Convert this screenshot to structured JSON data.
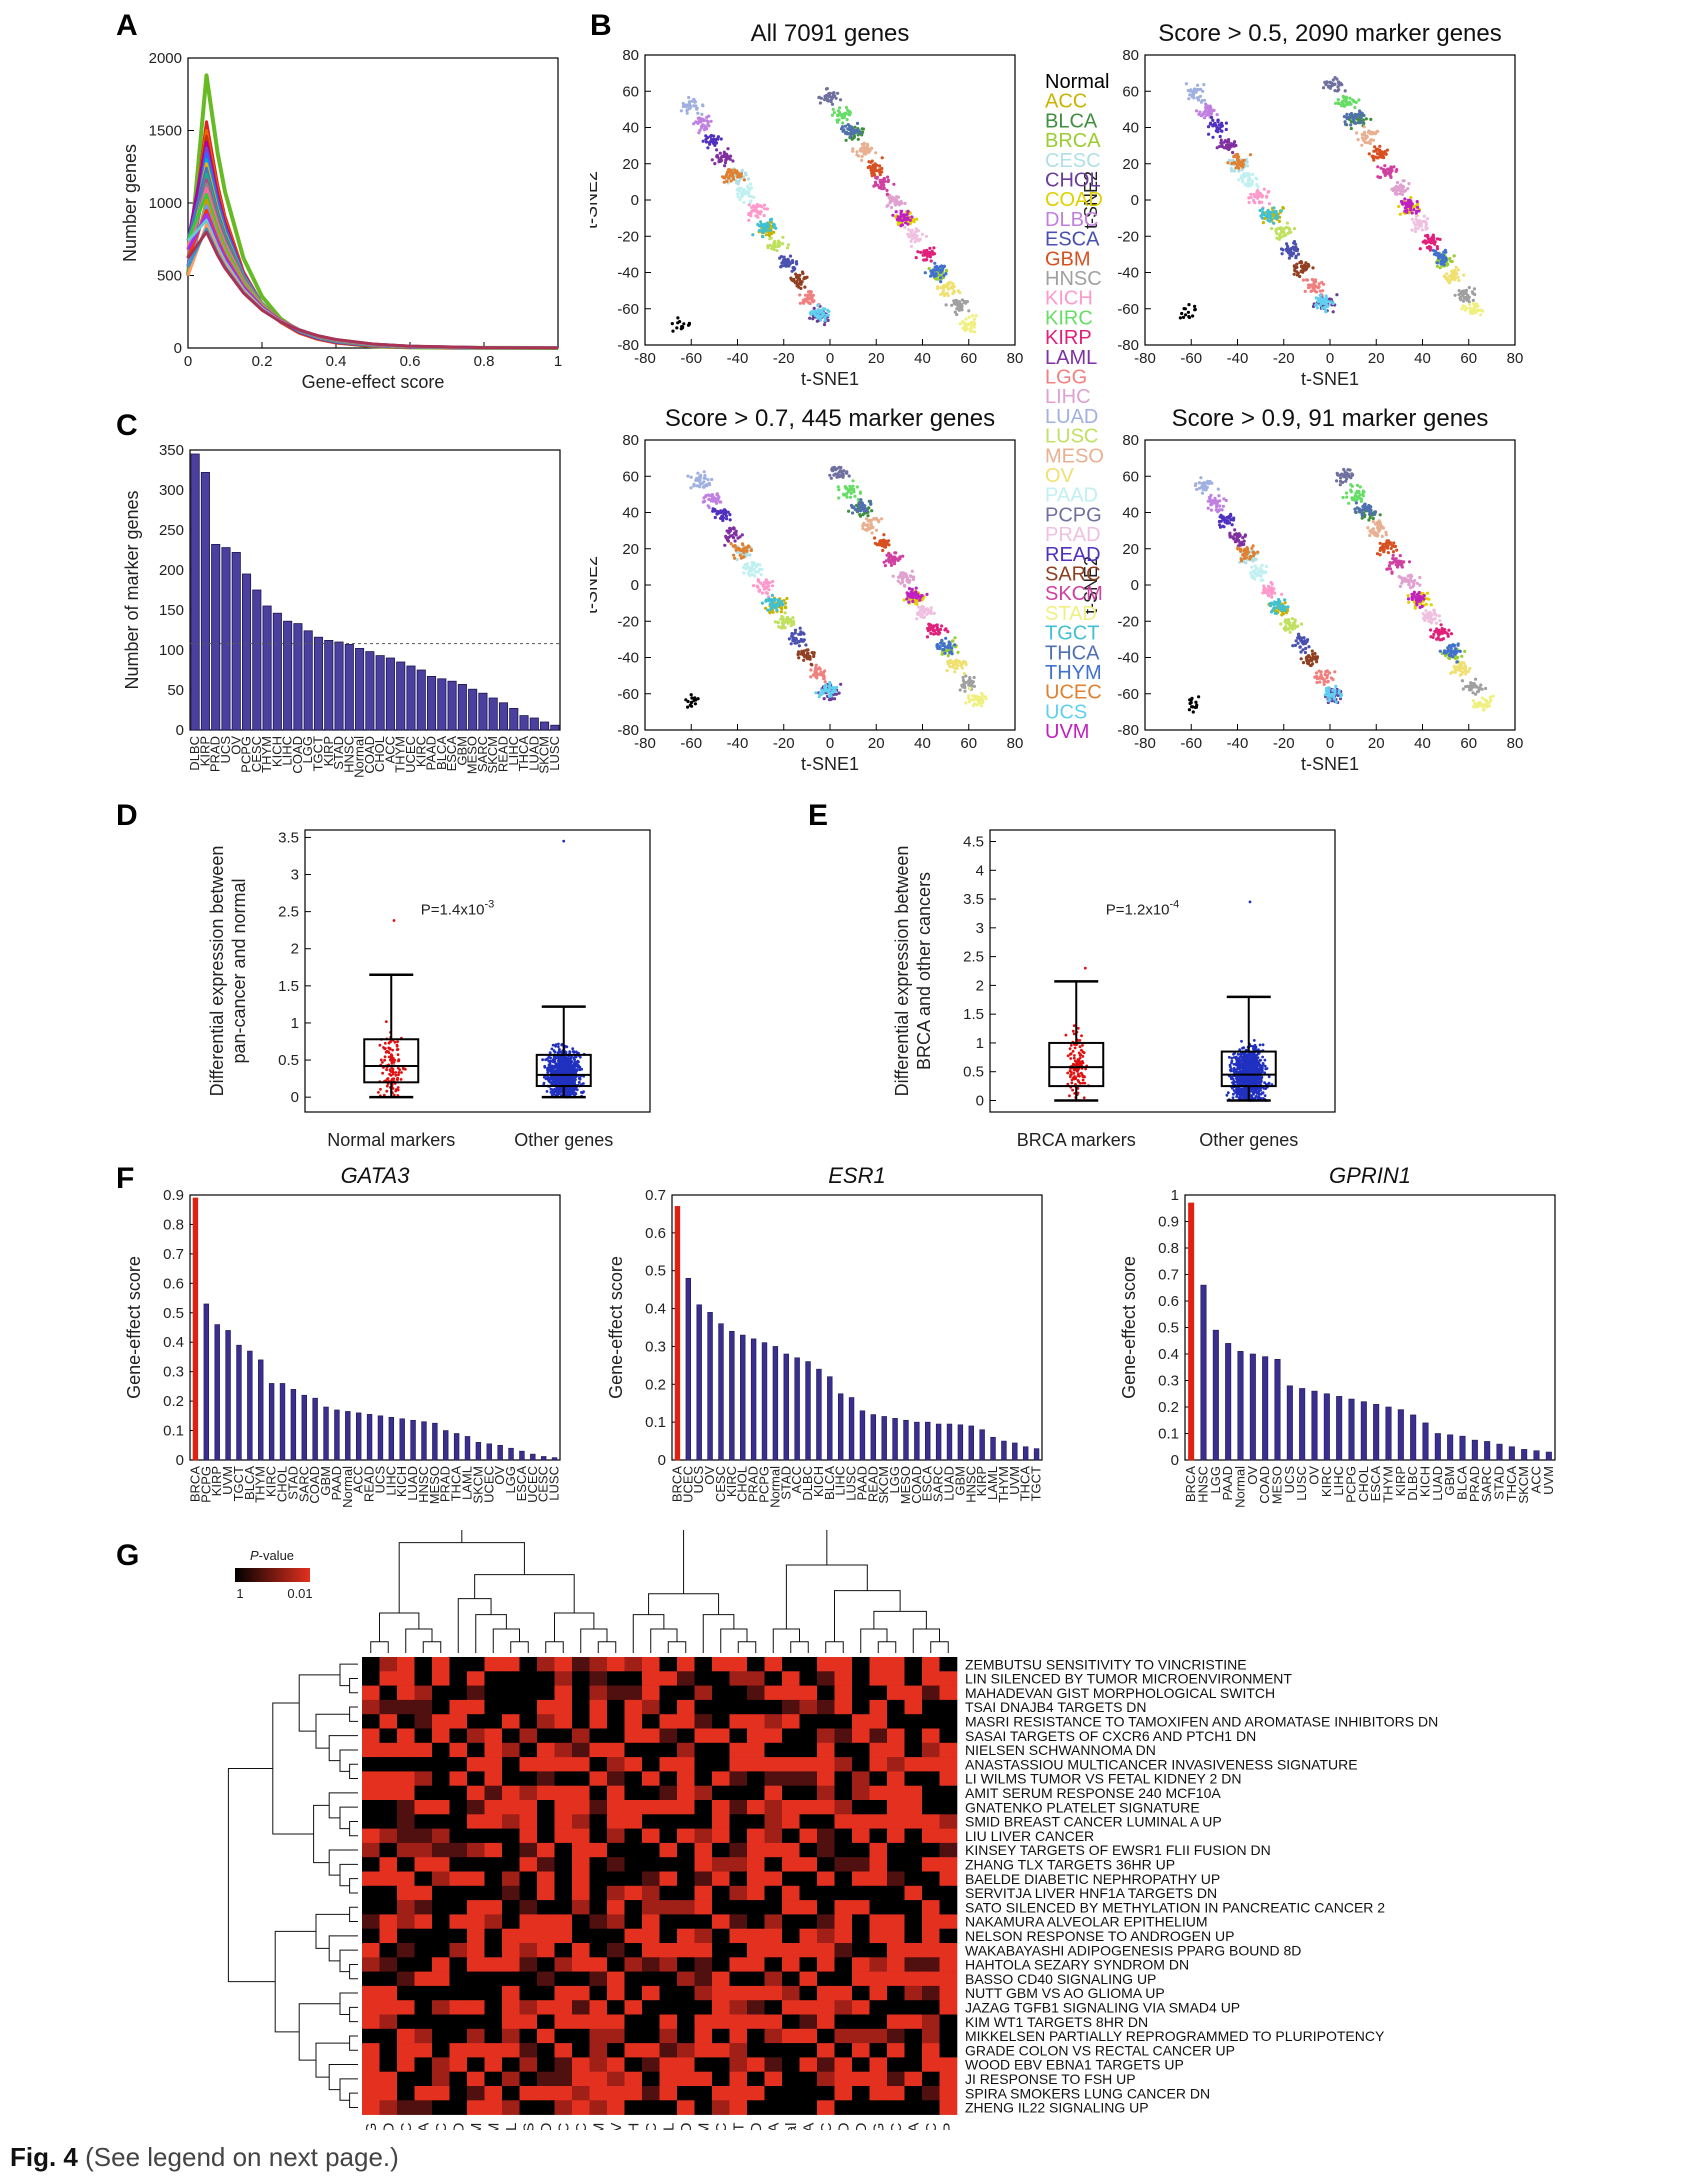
{
  "caption": {
    "fig": "Fig. 4",
    "text": "(See legend on next page.)"
  },
  "panel_labels": {
    "a": "A",
    "b": "B",
    "c": "C",
    "d": "D",
    "e": "E",
    "f": "F",
    "g": "G"
  },
  "cancer_colors": {
    "Normal": "#000000",
    "ACC": "#c8b400",
    "BLCA": "#3f8f3f",
    "BRCA": "#9acd32",
    "CESC": "#b0e0e6",
    "CHOL": "#6a3d9a",
    "COAD": "#e0d000",
    "DLBC": "#c080e0",
    "ESCA": "#4a50b0",
    "GBM": "#d85020",
    "HNSC": "#a0a0a0",
    "KICH": "#ff99cc",
    "KIRC": "#66dd66",
    "KIRP": "#e0207a",
    "LAML": "#8030a0",
    "LGG": "#f08080",
    "LIHC": "#e0a0d0",
    "LUAD": "#a0b0e0",
    "LUSC": "#c0e060",
    "MESO": "#e8b090",
    "OV": "#f0e070",
    "PAAD": "#c0f0f0",
    "PCPG": "#7070a0",
    "PRAD": "#f0c0e0",
    "READ": "#5030c0",
    "SARC": "#904020",
    "SKCM": "#d040a0",
    "STAD": "#f0f080",
    "TGCT": "#40c0d0",
    "THCA": "#5070b0",
    "THYM": "#4070d0",
    "UCEC": "#e08030",
    "UCS": "#60d0f0",
    "UVM": "#c020c0"
  },
  "legend_names": [
    "Normal",
    "ACC",
    "BLCA",
    "BRCA",
    "CESC",
    "CHOL",
    "COAD",
    "DLBC",
    "ESCA",
    "GBM",
    "HNSC",
    "KICH",
    "KIRC",
    "KIRP",
    "LAML",
    "LGG",
    "LIHC",
    "LUAD",
    "LUSC",
    "MESO",
    "OV",
    "PAAD",
    "PCPG",
    "PRAD",
    "READ",
    "SARC",
    "SKCM",
    "STAD",
    "TGCT",
    "THCA",
    "THYM",
    "UCEC",
    "UCS",
    "UVM"
  ],
  "chart_data": [
    {
      "id": "A",
      "type": "line",
      "xlabel": "Gene-effect score",
      "ylabel": "Number genes",
      "xlim": [
        0,
        1
      ],
      "ylim": [
        0,
        2000
      ],
      "xticks": [
        "0",
        "0.2",
        "0.4",
        "0.6",
        "0.8",
        "1"
      ],
      "yticks": [
        "0",
        "500",
        "1000",
        "1500",
        "2000"
      ],
      "x": [
        0,
        0.02,
        0.05,
        0.08,
        0.1,
        0.15,
        0.2,
        0.25,
        0.3,
        0.35,
        0.4,
        0.5,
        0.6,
        0.8,
        1.0
      ],
      "series_peaks": [
        1880,
        1560,
        1500,
        1460,
        1420,
        1380,
        1340,
        1300,
        1270,
        1240,
        1200,
        1160,
        1130,
        1100,
        1060,
        1020,
        980,
        950,
        920,
        880,
        850,
        820,
        800
      ]
    },
    {
      "id": "B",
      "type": "scatter",
      "xlabel": "t-SNE1",
      "ylabel": "t-SNE2",
      "xlim": [
        -80,
        80
      ],
      "ylim": [
        -80,
        80
      ],
      "xticks": [
        "-80",
        "-60",
        "-40",
        "-20",
        "0",
        "20",
        "40",
        "60",
        "80"
      ],
      "yticks": [
        "-80",
        "-60",
        "-40",
        "-20",
        "0",
        "20",
        "40",
        "60",
        "80"
      ],
      "subplots": [
        {
          "title": "All 7091 genes"
        },
        {
          "title": "Score > 0.5, 2090 marker genes"
        },
        {
          "title": "Score > 0.7, 445 marker genes"
        },
        {
          "title": "Score > 0.9, 91 marker genes"
        }
      ]
    },
    {
      "id": "C",
      "type": "bar",
      "ylabel": "Number of marker genes",
      "ylim": [
        0,
        350
      ],
      "yticks": [
        "0",
        "50",
        "100",
        "150",
        "200",
        "250",
        "300",
        "350"
      ],
      "reference_line": 108,
      "categories": [
        "DLBC",
        "KIRP",
        "PRAD",
        "UCS",
        "OV",
        "PCPG",
        "CESC",
        "THYM",
        "KICH",
        "LIHC",
        "COAD",
        "LGG",
        "TGCT",
        "KIRP",
        "STAD",
        "HNSC",
        "Normal",
        "COAD",
        "CHOL",
        "ACC",
        "THYM",
        "UCEC",
        "KIRC",
        "PAAD",
        "BLCA",
        "ESCA",
        "GBM",
        "MESO",
        "SARC",
        "SKCM",
        "READ",
        "LIHC",
        "THCA",
        "LUAD",
        "SKCM",
        "LUSC"
      ],
      "values": [
        345,
        322,
        232,
        228,
        222,
        195,
        175,
        155,
        146,
        136,
        133,
        124,
        116,
        112,
        110,
        107,
        102,
        98,
        93,
        90,
        85,
        80,
        75,
        67,
        64,
        61,
        57,
        51,
        46,
        40,
        34,
        27,
        18,
        15,
        10,
        6
      ]
    },
    {
      "id": "D",
      "type": "box",
      "ylabel": [
        "Differential expression between",
        "pan-cancer and normal"
      ],
      "ylim": [
        -0.2,
        3.6
      ],
      "yticks": [
        "0",
        "0.5",
        "1",
        "1.5",
        "2",
        "2.5",
        "3",
        "3.5"
      ],
      "pvalue": "P=1.4x10",
      "pvalue_exp": "-3",
      "groups": [
        {
          "name": "Normal markers",
          "q1": 0.2,
          "median": 0.42,
          "q3": 0.78,
          "whisker_low": 0.0,
          "whisker_high": 1.65,
          "max": 2.38
        },
        {
          "name": "Other genes",
          "q1": 0.15,
          "median": 0.3,
          "q3": 0.57,
          "whisker_low": 0.0,
          "whisker_high": 1.22,
          "max": 3.45
        }
      ]
    },
    {
      "id": "E",
      "type": "box",
      "ylabel": [
        "Differential expression between",
        "BRCA and other cancers"
      ],
      "ylim": [
        -0.2,
        4.7
      ],
      "yticks": [
        "0",
        "0.5",
        "1",
        "1.5",
        "2",
        "2.5",
        "3",
        "3.5",
        "4",
        "4.5"
      ],
      "pvalue": "P=1.2x10",
      "pvalue_exp": "-4",
      "groups": [
        {
          "name": "BRCA markers",
          "q1": 0.25,
          "median": 0.58,
          "q3": 1.0,
          "whisker_low": 0.0,
          "whisker_high": 2.07,
          "max": 2.3
        },
        {
          "name": "Other genes",
          "q1": 0.25,
          "median": 0.45,
          "q3": 0.85,
          "whisker_low": 0.0,
          "whisker_high": 1.8,
          "max": 3.45
        }
      ]
    },
    {
      "id": "F1",
      "type": "bar",
      "gene": "GATA3",
      "ylabel": "Gene-effect score",
      "ylim": [
        0,
        0.9
      ],
      "yticks": [
        "0",
        "0.1",
        "0.2",
        "0.3",
        "0.4",
        "0.5",
        "0.6",
        "0.7",
        "0.8",
        "0.9"
      ],
      "categories": [
        "BRCA",
        "PCPG",
        "KIRP",
        "UVM",
        "TGCT",
        "BLCA",
        "THYM",
        "KIRC",
        "CHOL",
        "STAD",
        "SARC",
        "COAD",
        "GBM",
        "PAAD",
        "Normal",
        "ACC",
        "READ",
        "UCS",
        "LIHC",
        "KICH",
        "LUAD",
        "HNSC",
        "MESO",
        "PRAD",
        "THCA",
        "LAML",
        "SKCM",
        "UCEC",
        "OV",
        "LGG",
        "ESCA",
        "UCEC",
        "CESC",
        "LUSC"
      ],
      "values": [
        0.89,
        0.53,
        0.46,
        0.44,
        0.39,
        0.37,
        0.34,
        0.26,
        0.26,
        0.24,
        0.22,
        0.21,
        0.18,
        0.17,
        0.165,
        0.16,
        0.155,
        0.15,
        0.145,
        0.14,
        0.135,
        0.13,
        0.125,
        0.1,
        0.09,
        0.08,
        0.06,
        0.055,
        0.05,
        0.04,
        0.03,
        0.02,
        0.012,
        0.008
      ]
    },
    {
      "id": "F2",
      "type": "bar",
      "gene": "ESR1",
      "ylabel": "Gene-effect score",
      "ylim": [
        0,
        0.7
      ],
      "yticks": [
        "0",
        "0.1",
        "0.2",
        "0.3",
        "0.4",
        "0.5",
        "0.6",
        "0.7"
      ],
      "categories": [
        "BRCA",
        "UCEC",
        "UCS",
        "OV",
        "CESC",
        "KIRC",
        "CHOL",
        "PRAD",
        "PCPG",
        "Normal",
        "STAD",
        "ACC",
        "DLBC",
        "KICH",
        "BLCA",
        "LIHC",
        "LUSC",
        "PAAD",
        "READ",
        "SKCM",
        "LGG",
        "MESO",
        "COAD",
        "ESCA",
        "SARC",
        "LUAD",
        "GBM",
        "HNSC",
        "KIRP",
        "LAML",
        "THYM",
        "UVM",
        "THCA",
        "TGCT"
      ],
      "values": [
        0.67,
        0.48,
        0.41,
        0.39,
        0.36,
        0.34,
        0.33,
        0.32,
        0.31,
        0.3,
        0.28,
        0.27,
        0.26,
        0.24,
        0.22,
        0.175,
        0.165,
        0.13,
        0.12,
        0.115,
        0.11,
        0.105,
        0.1,
        0.1,
        0.095,
        0.095,
        0.093,
        0.09,
        0.08,
        0.06,
        0.05,
        0.045,
        0.035,
        0.03
      ]
    },
    {
      "id": "F3",
      "type": "bar",
      "gene": "GPRIN1",
      "ylabel": "Gene-effect score",
      "ylim": [
        0,
        1
      ],
      "yticks": [
        "0",
        "0.1",
        "0.2",
        "0.3",
        "0.4",
        "0.5",
        "0.6",
        "0.7",
        "0.8",
        "0.9",
        "1"
      ],
      "categories": [
        "BRCA",
        "HNSC",
        "LGG",
        "PAAD",
        "Normal",
        "OV",
        "COAD",
        "MESO",
        "UCS",
        "LUSC",
        "OV",
        "KIRC",
        "LIHC",
        "PCPG",
        "CHOL",
        "ESCA",
        "THYM",
        "KIRP",
        "DLBC",
        "KICH",
        "LUAD",
        "GBM",
        "BLCA",
        "PRAD",
        "SARC",
        "STAD",
        "THCA",
        "SKCM",
        "ACC",
        "UVM"
      ],
      "values": [
        0.97,
        0.66,
        0.49,
        0.44,
        0.41,
        0.4,
        0.39,
        0.38,
        0.28,
        0.27,
        0.26,
        0.25,
        0.24,
        0.23,
        0.22,
        0.21,
        0.2,
        0.19,
        0.17,
        0.14,
        0.1,
        0.095,
        0.09,
        0.075,
        0.07,
        0.06,
        0.05,
        0.04,
        0.035,
        0.03
      ]
    },
    {
      "id": "G",
      "type": "heatmap",
      "legend": {
        "title_italic": "P",
        "title_rest": "-value",
        "low": "1",
        "high": "0.01"
      },
      "columns": [
        "PCPG",
        "COAD",
        "ACC",
        "BRCA",
        "SARC",
        "READ",
        "SKCM",
        "THYM",
        "LAML",
        "UCS",
        "PRAD",
        "CESC",
        "LIHC",
        "GBM",
        "OV",
        "KICH",
        "HNSC",
        "CHOL",
        "MESO",
        "UVM",
        "DLBC",
        "TGCT",
        "PAAD",
        "ESCA",
        "Normal",
        "THCA",
        "LUSC",
        "LUAD",
        "STAD",
        "LGG",
        "UCEC",
        "BLCA",
        "KIRC",
        "KIRP"
      ],
      "rows": [
        "ZEMBUTSU SENSITIVITY TO VINCRISTINE",
        "LIN SILENCED BY TUMOR MICROENVIRONMENT",
        "MAHADEVAN GIST MORPHOLOGICAL SWITCH",
        "TSAI DNAJB4 TARGETS DN",
        "MASRI RESISTANCE TO TAMOXIFEN AND AROMATASE INHIBITORS DN",
        "SASAI TARGETS OF CXCR6 AND PTCH1 DN",
        "NIELSEN SCHWANNOMA DN",
        "ANASTASSIOU MULTICANCER INVASIVENESS SIGNATURE",
        "LI WILMS TUMOR VS FETAL KIDNEY 2 DN",
        "AMIT SERUM RESPONSE 240 MCF10A",
        "GNATENKO PLATELET SIGNATURE",
        "SMID BREAST CANCER LUMINAL A UP",
        "LIU LIVER CANCER",
        "KINSEY TARGETS OF EWSR1 FLII FUSION DN",
        "ZHANG TLX TARGETS 36HR UP",
        "BAELDE DIABETIC NEPHROPATHY UP",
        "SERVITJA LIVER HNF1A TARGETS DN",
        "SATO SILENCED BY METHYLATION IN PANCREATIC CANCER 2",
        "NAKAMURA ALVEOLAR EPITHELIUM",
        "NELSON RESPONSE TO ANDROGEN UP",
        "WAKABAYASHI ADIPOGENESIS PPARG BOUND 8D",
        "HAHTOLA SEZARY SYNDROM DN",
        "BASSO CD40 SIGNALING UP",
        "NUTT GBM VS AO GLIOMA UP",
        "JAZAG TGFB1 SIGNALING VIA SMAD4 UP",
        "KIM WT1 TARGETS 8HR DN",
        "MIKKELSEN PARTIALLY REPROGRAMMED TO PLURIPOTENCY",
        "GRADE COLON VS RECTAL CANCER UP",
        "WOOD EBV EBNA1 TARGETS UP",
        "JI RESPONSE TO FSH UP",
        "SPIRA SMOKERS LUNG CANCER DN",
        "ZHENG IL22 SIGNALING UP"
      ]
    }
  ]
}
